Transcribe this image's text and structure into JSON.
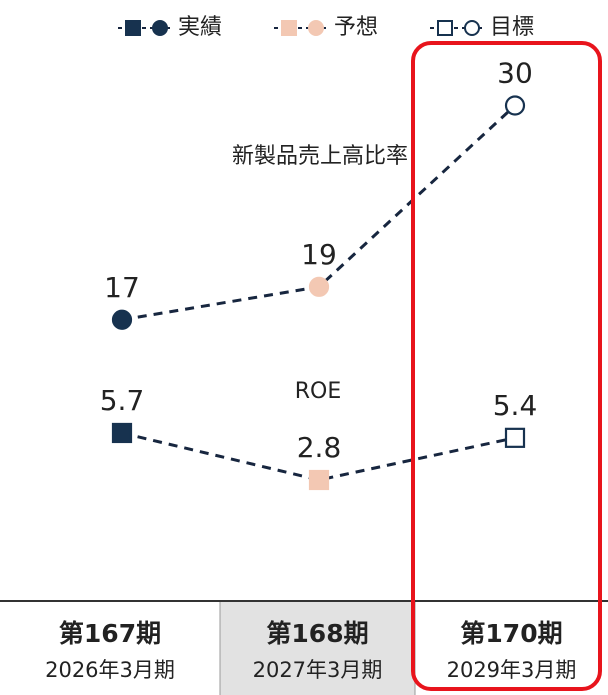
{
  "chart_data": {
    "type": "line",
    "categories": [
      "第167期",
      "第168期",
      "第170期"
    ],
    "category_dates": [
      "2026年3月期",
      "2027年3月期",
      "2029年3月期"
    ],
    "legend": [
      {
        "name": "実績",
        "color": "#17324f",
        "fill": "#17324f"
      },
      {
        "name": "予想",
        "color": "#f3c8b3",
        "fill": "#f3c8b3"
      },
      {
        "name": "目標",
        "color": "#17324f",
        "fill": "#ffffff"
      }
    ],
    "series": [
      {
        "name": "新製品売上高比率",
        "marker": "circle",
        "color": "#17263f",
        "values": [
          17,
          19,
          30
        ]
      },
      {
        "name": "ROE",
        "marker": "square",
        "color": "#17263f",
        "axis": "y2",
        "values": [
          5.7,
          2.8,
          5.4
        ]
      }
    ],
    "ylim": [
      0,
      36.4
    ],
    "y2lim": [
      -4.6,
      32.4
    ]
  }
}
